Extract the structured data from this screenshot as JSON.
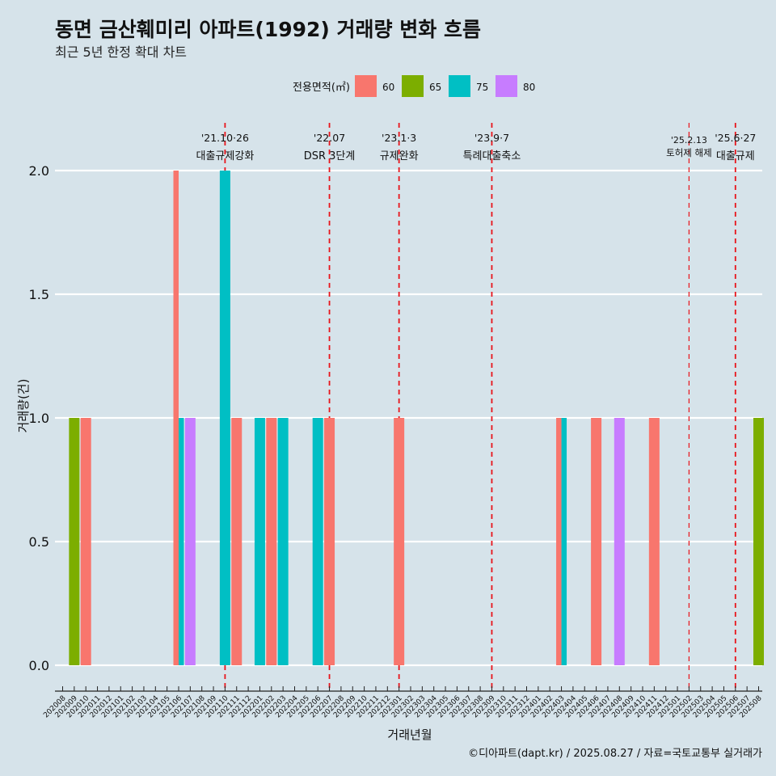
{
  "chart_data": {
    "type": "bar",
    "title": "동면 금산훼미리 아파트(1992) 거래량 변화 흐름",
    "subtitle": "최근 5년 한정 확대 차트",
    "xlabel": "거래년월",
    "ylabel": "거래량(건)",
    "caption": "©디아파트(dapt.kr) / 2025.08.27 / 자료=국토교통부 실거래가",
    "ylim": [
      0,
      2
    ],
    "yticks": [
      "0.0",
      "0.5",
      "1.0",
      "1.5",
      "2.0"
    ],
    "ytick_values": [
      0,
      0.5,
      1.0,
      1.5,
      2.0
    ],
    "grid": "horizontal",
    "legend": {
      "title": "전용면적(㎡)",
      "position": "top",
      "items": [
        {
          "label": "60",
          "color": "#f8766d"
        },
        {
          "label": "65",
          "color": "#7cae00"
        },
        {
          "label": "75",
          "color": "#00bfc4"
        },
        {
          "label": "80",
          "color": "#c77cff"
        }
      ]
    },
    "categories": [
      "202008",
      "202009",
      "202010",
      "202011",
      "202012",
      "202101",
      "202102",
      "202103",
      "202104",
      "202105",
      "202106",
      "202107",
      "202108",
      "202109",
      "202110",
      "202111",
      "202112",
      "202201",
      "202202",
      "202203",
      "202204",
      "202205",
      "202206",
      "202207",
      "202208",
      "202209",
      "202210",
      "202211",
      "202212",
      "202301",
      "202302",
      "202303",
      "202304",
      "202305",
      "202306",
      "202307",
      "202308",
      "202309",
      "202310",
      "202311",
      "202312",
      "202401",
      "202402",
      "202403",
      "202404",
      "202405",
      "202406",
      "202407",
      "202408",
      "202409",
      "202410",
      "202411",
      "202412",
      "202501",
      "202502",
      "202503",
      "202504",
      "202505",
      "202506",
      "202507",
      "202508"
    ],
    "bars": [
      {
        "month": "202009",
        "area": "65",
        "value": 1
      },
      {
        "month": "202010",
        "area": "60",
        "value": 1
      },
      {
        "month": "202106",
        "area": "60",
        "value": 2
      },
      {
        "month": "202106",
        "area": "75",
        "value": 1
      },
      {
        "month": "202107",
        "area": "80",
        "value": 1
      },
      {
        "month": "202110",
        "area": "75",
        "value": 2
      },
      {
        "month": "202111",
        "area": "60",
        "value": 1
      },
      {
        "month": "202201",
        "area": "75",
        "value": 1
      },
      {
        "month": "202202",
        "area": "60",
        "value": 1
      },
      {
        "month": "202203",
        "area": "75",
        "value": 1
      },
      {
        "month": "202206",
        "area": "75",
        "value": 1
      },
      {
        "month": "202207",
        "area": "60",
        "value": 1
      },
      {
        "month": "202301",
        "area": "60",
        "value": 1
      },
      {
        "month": "202403",
        "area": "60",
        "value": 1
      },
      {
        "month": "202403",
        "area": "75",
        "value": 1
      },
      {
        "month": "202406",
        "area": "60",
        "value": 1
      },
      {
        "month": "202408",
        "area": "80",
        "value": 1
      },
      {
        "month": "202411",
        "area": "60",
        "value": 1
      },
      {
        "month": "202508",
        "area": "65",
        "value": 1
      }
    ],
    "events": [
      {
        "month": "202110",
        "date": "'21.10·26",
        "label": "대출규제강화"
      },
      {
        "month": "202207",
        "date": "'22.07",
        "label": "DSR 3단계"
      },
      {
        "month": "202301",
        "date": "'23.1·3",
        "label": "규제완화"
      },
      {
        "month": "202309",
        "date": "'23.9·7",
        "label": "특례대출축소"
      },
      {
        "month": "202502",
        "date": "'25.2.13",
        "label": "토허제 해제"
      },
      {
        "month": "202506",
        "date": "'25.6·27",
        "label": "대출규제"
      }
    ],
    "event_line_color": "#e8141b"
  }
}
